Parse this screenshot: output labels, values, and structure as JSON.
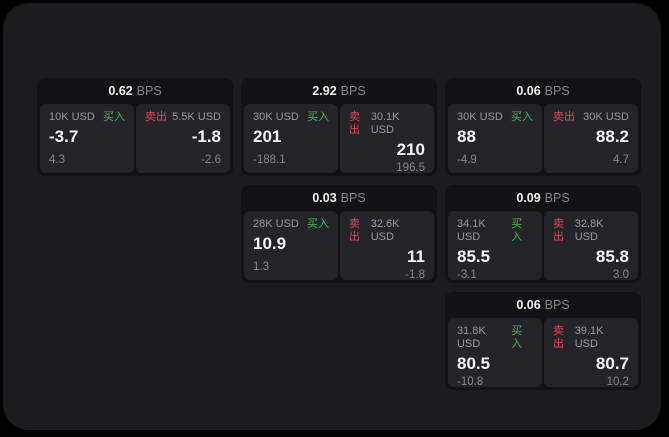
{
  "page": {
    "background": "#000000",
    "surface_color": "#1c1c1e"
  },
  "labels": {
    "bps_suffix": "BPS",
    "buy": "买入",
    "sell": "卖出"
  },
  "colors": {
    "buy_green": "#45b368",
    "sell_red": "#d9495f",
    "card_bg": "#121214",
    "panel_bg": "#242428"
  },
  "grid": {
    "col_lefts": [
      37,
      241,
      445
    ],
    "row_tops": [
      78,
      185,
      292
    ]
  },
  "cards": [
    {
      "bps": "0.62",
      "col": 0,
      "row": 0,
      "buy": {
        "notional": "10K USD",
        "price": "-3.7",
        "delta": "4.3"
      },
      "sell": {
        "notional": "5.5K USD",
        "price": "-1.8",
        "delta": "-2.6"
      }
    },
    {
      "bps": "2.92",
      "col": 1,
      "row": 0,
      "buy": {
        "notional": "30K USD",
        "price": "201",
        "delta": "-188.1"
      },
      "sell": {
        "notional": "30.1K USD",
        "price": "210",
        "delta": "196.5"
      }
    },
    {
      "bps": "0.06",
      "col": 2,
      "row": 0,
      "buy": {
        "notional": "30K USD",
        "price": "88",
        "delta": "-4.9"
      },
      "sell": {
        "notional": "30K USD",
        "price": "88.2",
        "delta": "4.7"
      }
    },
    {
      "bps": "0.03",
      "col": 1,
      "row": 1,
      "buy": {
        "notional": "28K USD",
        "price": "10.9",
        "delta": "1.3"
      },
      "sell": {
        "notional": "32.6K USD",
        "price": "11",
        "delta": "-1.8"
      }
    },
    {
      "bps": "0.09",
      "col": 2,
      "row": 1,
      "buy": {
        "notional": "34.1K USD",
        "price": "85.5",
        "delta": "-3.1"
      },
      "sell": {
        "notional": "32.8K USD",
        "price": "85.8",
        "delta": "3.0"
      }
    },
    {
      "bps": "0.06",
      "col": 2,
      "row": 2,
      "buy": {
        "notional": "31.8K USD",
        "price": "80.5",
        "delta": "-10.8"
      },
      "sell": {
        "notional": "39.1K USD",
        "price": "80.7",
        "delta": "10.2"
      }
    }
  ]
}
